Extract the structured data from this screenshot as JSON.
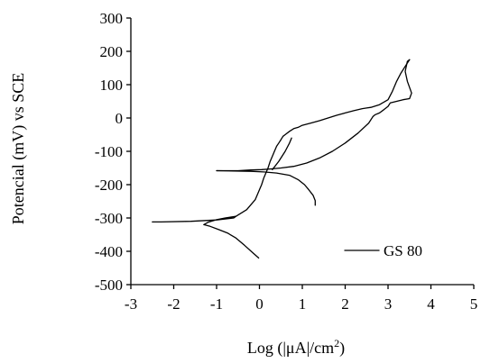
{
  "chart_data": {
    "type": "line",
    "xlabel": {
      "prefix": "Log (|",
      "mu": "μ",
      "unit": "A|/cm",
      "sup": "2",
      "suffix": ")"
    },
    "ylabel": "Potencial (mV) vs SCE",
    "xlim": [
      -3,
      5
    ],
    "ylim": [
      -500,
      300
    ],
    "xticks": [
      -3,
      -2,
      -1,
      0,
      1,
      2,
      3,
      4,
      5
    ],
    "yticks": [
      -500,
      -400,
      -300,
      -200,
      -100,
      0,
      100,
      200,
      300
    ],
    "legend": {
      "position": "bottom-right",
      "entries": [
        "GS 80"
      ]
    },
    "series": [
      {
        "name": "GS 80",
        "color": "#000000",
        "segments": [
          {
            "x": [
              -0.02,
              -0.15,
              -0.35,
              -0.55,
              -0.75,
              -0.95,
              -1.15,
              -1.3,
              -1.2,
              -1.0,
              -0.8,
              -0.55,
              -0.6,
              -1.0,
              -1.6,
              -2.3,
              -2.5
            ],
            "y": [
              -420,
              -405,
              -382,
              -360,
              -345,
              -335,
              -325,
              -320,
              -313,
              -305,
              -300,
              -295,
              -300,
              -306,
              -310,
              -312,
              -312
            ]
          },
          {
            "x": [
              -0.55,
              -0.3,
              -0.1,
              0.0,
              0.05,
              0.1,
              0.15,
              0.2,
              0.25,
              0.3,
              0.35,
              0.4,
              0.45,
              0.5,
              0.55,
              0.6,
              0.7,
              0.8,
              0.9,
              1.0,
              1.2,
              1.4,
              1.6,
              1.8,
              2.0,
              2.2,
              2.4,
              2.5,
              2.6,
              2.8,
              3.0,
              3.1,
              3.2,
              3.3,
              3.4,
              3.5
            ],
            "y": [
              -295,
              -275,
              -245,
              -215,
              -200,
              -180,
              -165,
              -150,
              -130,
              -115,
              -100,
              -85,
              -75,
              -65,
              -55,
              -50,
              -40,
              -32,
              -28,
              -22,
              -15,
              -8,
              0,
              8,
              15,
              22,
              28,
              30,
              32,
              40,
              55,
              80,
              110,
              135,
              155,
              175
            ]
          },
          {
            "x": [
              3.5,
              3.45,
              3.4,
              3.45,
              3.55,
              3.5,
              3.35,
              3.2,
              3.05,
              3.0,
              2.9,
              2.8,
              2.7,
              2.65
            ],
            "y": [
              175,
              170,
              140,
              110,
              75,
              58,
              55,
              50,
              45,
              35,
              25,
              15,
              10,
              5
            ]
          },
          {
            "x": [
              2.65,
              2.55,
              2.3,
              2.0,
              1.7,
              1.4,
              1.1,
              0.8,
              0.5,
              0.25,
              0.05,
              -0.2,
              -0.5,
              -0.8,
              -1.0
            ],
            "y": [
              5,
              -15,
              -45,
              -75,
              -100,
              -120,
              -135,
              -145,
              -150,
              -153,
              -155,
              -156,
              -158,
              -158,
              -158
            ]
          },
          {
            "x": [
              -1.0,
              -0.6,
              -0.2,
              0.1,
              0.4,
              0.7,
              0.9,
              1.05,
              1.15,
              1.25,
              1.3,
              1.3
            ],
            "y": [
              -158,
              -159,
              -160,
              -162,
              -165,
              -172,
              -185,
              -200,
              -215,
              -232,
              -248,
              -262
            ]
          },
          {
            "x": [
              0.3,
              0.45,
              0.6,
              0.7,
              0.75
            ],
            "y": [
              -155,
              -130,
              -100,
              -75,
              -60
            ]
          }
        ]
      }
    ]
  }
}
